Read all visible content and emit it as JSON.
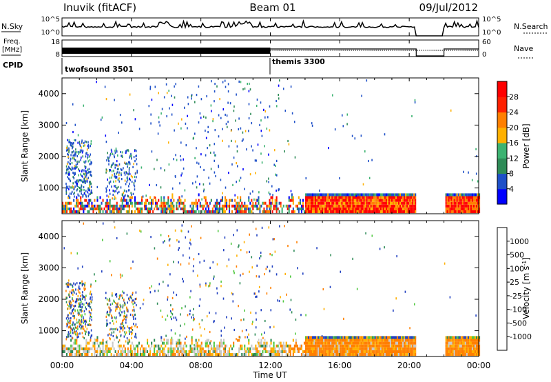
{
  "header": {
    "station": "Inuvik (fitACF)",
    "beam": "Beam 01",
    "date": "09/Jul/2012"
  },
  "top_panels": {
    "nsky_label": "N.Sky",
    "nsky_ticks": [
      "10^5",
      "10^0"
    ],
    "nsearch_label": "N.Search",
    "nsearch_ticks": [
      "10^5",
      "10^0"
    ],
    "freq_label": "Freq.",
    "freq_unit": "[MHz]",
    "freq_ticks": [
      "18",
      "8"
    ],
    "nave_label": "Nave",
    "nave_ticks": [
      "60",
      "0"
    ],
    "cpid_label": "CPID",
    "cpid_segments": [
      {
        "name": "twofsound 3501",
        "start_hour": 0.0,
        "end_hour": 12.0
      },
      {
        "name": "themis 3300",
        "start_hour": 12.0,
        "end_hour": 24.0
      }
    ]
  },
  "x_axis": {
    "title": "Time UT",
    "ticks": [
      "00:00",
      "04:00",
      "08:00",
      "12:00",
      "16:00",
      "20:00",
      "00:00"
    ],
    "range_hours": [
      0,
      24
    ]
  },
  "data_gap": {
    "start_hour": 20.4,
    "end_hour": 22.0
  },
  "chart_data": [
    {
      "type": "heatmap",
      "title": "Power",
      "xlabel": "Time UT",
      "ylabel": "Slant Range [km]",
      "ylim": [
        180,
        4500
      ],
      "yticks": [
        "1000",
        "2000",
        "3000",
        "4000"
      ],
      "colorbar_label": "Power [dB]",
      "colorbar_ticks": [
        "4",
        "8",
        "12",
        "16",
        "20",
        "24",
        "28"
      ],
      "colorbar_range": [
        0,
        32
      ],
      "colors": [
        "#0000ff",
        "#1e50c8",
        "#2e8b57",
        "#3cb371",
        "#ffb000",
        "#ff7f00",
        "#ff2000",
        "#ff0000"
      ]
    },
    {
      "type": "heatmap",
      "title": "Velocity",
      "xlabel": "Time UT",
      "ylabel": "Slant Range [km]",
      "ylim": [
        180,
        4500
      ],
      "yticks": [
        "1000",
        "2000",
        "3000",
        "4000"
      ],
      "colorbar_label": "Velocity [m s^-1]",
      "colorbar_ticks": [
        "1000",
        "500",
        "100",
        "25",
        "-25",
        "-100",
        "-500",
        "-1000"
      ],
      "colors": [
        "#2040c0",
        "#1e6b8c",
        "#2e8b57",
        "#50c840",
        "#c8c8c8",
        "#ffb000",
        "#ff7f00",
        "#ff3000",
        "#ff0000"
      ]
    }
  ]
}
